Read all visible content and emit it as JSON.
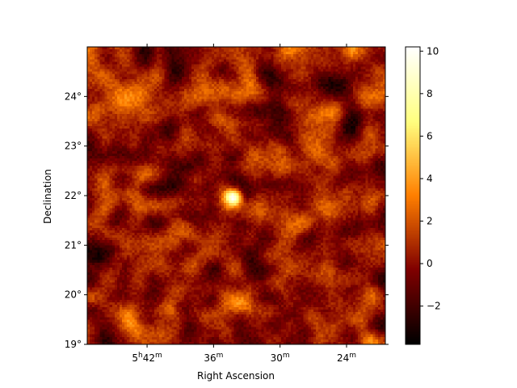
{
  "chart_data": {
    "type": "heatmap",
    "xlabel": "Right Ascension",
    "ylabel": "Declination",
    "x_ticks": [
      {
        "label": "5h42m",
        "value_min": 342
      },
      {
        "label": "36m",
        "value_min": 336
      },
      {
        "label": "30m",
        "value_min": 330
      },
      {
        "label": "24m",
        "value_min": 324
      }
    ],
    "y_ticks": [
      {
        "label": "19°",
        "value": 19
      },
      {
        "label": "20°",
        "value": 20
      },
      {
        "label": "21°",
        "value": 21
      },
      {
        "label": "22°",
        "value": 22
      },
      {
        "label": "23°",
        "value": 23
      },
      {
        "label": "24°",
        "value": 24
      }
    ],
    "x_range_min": [
      347.4,
      320.5
    ],
    "y_range": [
      19.0,
      25.0
    ],
    "colormap": "afmhot",
    "colorbar": {
      "range": [
        -3.8,
        10.2
      ],
      "ticks": [
        {
          "label": "−2",
          "value": -2
        },
        {
          "label": "0",
          "value": 0
        },
        {
          "label": "2",
          "value": 2
        },
        {
          "label": "4",
          "value": 4
        },
        {
          "label": "6",
          "value": 6
        },
        {
          "label": "8",
          "value": 8
        },
        {
          "label": "10",
          "value": 10
        }
      ]
    },
    "bright_source": {
      "ra_min": 334.3,
      "dec": 22.0,
      "peak": 10.2
    },
    "grid": false,
    "legend": "none"
  }
}
